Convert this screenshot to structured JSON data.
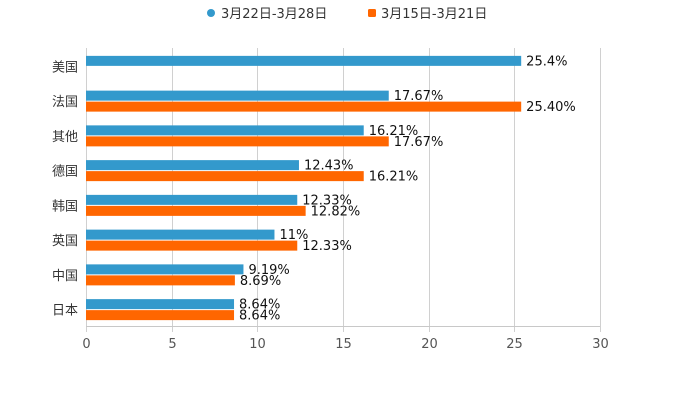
{
  "chart_data": {
    "type": "bar",
    "orientation": "horizontal",
    "title": "",
    "xlabel": "",
    "ylabel": "",
    "xlim": [
      0,
      30
    ],
    "x_ticks": [
      0,
      5,
      10,
      15,
      20,
      25,
      30
    ],
    "x_tick_labels": [
      "0",
      "5",
      "10",
      "15",
      "20",
      "25",
      "30"
    ],
    "grid": "vertical",
    "legend_position": "top-center",
    "categories": [
      "美国",
      "法国",
      "其他",
      "德国",
      "韩国",
      "英国",
      "中国",
      "日本"
    ],
    "series": [
      {
        "name": "3月22日-3月28日",
        "color": "#3399cc",
        "values": [
          25.4,
          17.67,
          16.21,
          12.43,
          12.33,
          11,
          9.19,
          8.64
        ],
        "labels": [
          "25.4%",
          "17.67%",
          "16.21%",
          "12.43%",
          "12.33%",
          "11%",
          "9.19%",
          "8.64%"
        ]
      },
      {
        "name": "3月15日-3月21日",
        "color": "#ff6600",
        "values": [
          null,
          25.4,
          17.67,
          16.21,
          12.82,
          12.33,
          8.69,
          8.64
        ],
        "labels": [
          "",
          "25.40%",
          "17.67%",
          "16.21%",
          "12.82%",
          "12.33%",
          "8.69%",
          "8.64%"
        ]
      }
    ]
  }
}
